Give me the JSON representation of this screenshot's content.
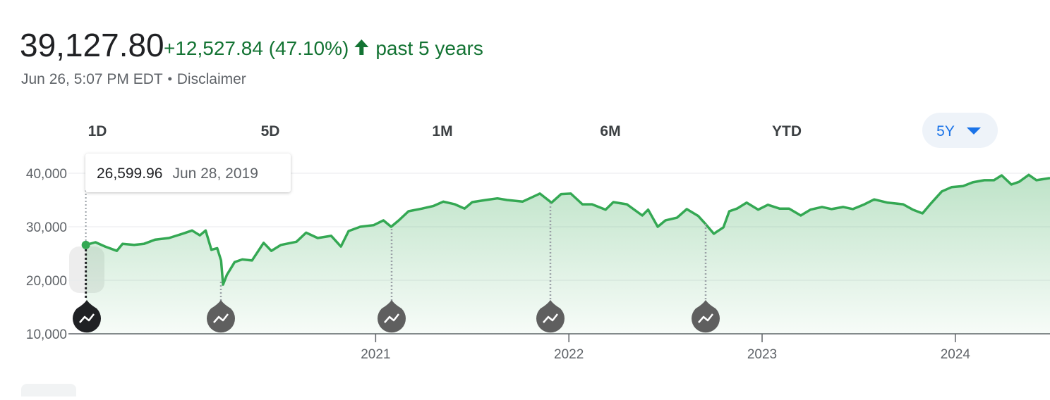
{
  "header": {
    "price": "39,127.80",
    "change": "+12,527.84 (47.10%)",
    "period": "past 5 years",
    "timestamp": "Jun 26, 5:07 PM EDT",
    "disclaimer": "Disclaimer"
  },
  "range_tabs": [
    "1D",
    "5D",
    "1M",
    "6M",
    "YTD",
    "5Y"
  ],
  "tooltip": {
    "value": "26,599.96",
    "date": "Jun 28, 2019"
  },
  "chart_data": {
    "type": "line",
    "color": "#34a853",
    "grid": true,
    "x": [
      2019.5,
      2019.55,
      2019.6,
      2019.66,
      2019.69,
      2019.75,
      2019.8,
      2019.86,
      2019.93,
      2020.0,
      2020.05,
      2020.09,
      2020.12,
      2020.15,
      2020.18,
      2020.2,
      2020.21,
      2020.23,
      2020.27,
      2020.31,
      2020.36,
      2020.42,
      2020.46,
      2020.51,
      2020.59,
      2020.64,
      2020.7,
      2020.77,
      2020.82,
      2020.86,
      2020.92,
      2020.99,
      2021.04,
      2021.08,
      2021.12,
      2021.17,
      2021.24,
      2021.3,
      2021.35,
      2021.41,
      2021.46,
      2021.5,
      2021.57,
      2021.63,
      2021.68,
      2021.76,
      2021.85,
      2021.91,
      2021.96,
      2022.01,
      2022.07,
      2022.12,
      2022.19,
      2022.23,
      2022.3,
      2022.38,
      2022.41,
      2022.46,
      2022.5,
      2022.56,
      2022.61,
      2022.67,
      2022.7,
      2022.75,
      2022.8,
      2022.83,
      2022.87,
      2022.92,
      2022.98,
      2023.03,
      2023.09,
      2023.14,
      2023.2,
      2023.25,
      2023.31,
      2023.36,
      2023.42,
      2023.47,
      2023.53,
      2023.58,
      2023.65,
      2023.73,
      2023.78,
      2023.83,
      2023.87,
      2023.93,
      2023.98,
      2024.04,
      2024.09,
      2024.15,
      2024.2,
      2024.24,
      2024.29,
      2024.33,
      2024.38,
      2024.42,
      2024.49
    ],
    "values": [
      26599.96,
      27100,
      26300,
      25500,
      26800,
      26600,
      26800,
      27600,
      27900,
      28700,
      29300,
      28400,
      29300,
      25700,
      26000,
      23700,
      19200,
      21000,
      23400,
      23900,
      23700,
      27000,
      25500,
      26600,
      27200,
      28900,
      27900,
      28300,
      26300,
      29200,
      30000,
      30300,
      31200,
      30000,
      31200,
      32900,
      33400,
      33900,
      34700,
      34200,
      33400,
      34600,
      35000,
      35300,
      35000,
      34700,
      36200,
      34500,
      36100,
      36200,
      34200,
      34200,
      33200,
      34600,
      34200,
      32100,
      33200,
      30000,
      31200,
      31700,
      33300,
      32000,
      30800,
      28700,
      29900,
      32900,
      33400,
      34500,
      33200,
      34100,
      33400,
      33400,
      32100,
      33200,
      33700,
      33300,
      33700,
      33300,
      34200,
      35100,
      34500,
      34200,
      33200,
      32500,
      34200,
      36600,
      37400,
      37600,
      38300,
      38700,
      38700,
      39600,
      37900,
      38400,
      39700,
      38700,
      39100
    ],
    "xlim": [
      2019.41,
      2024.49
    ],
    "ylim": [
      10000,
      42000
    ],
    "xticks": [
      2021,
      2022,
      2023,
      2024
    ],
    "yticks": [
      {
        "value": 10000,
        "label": "10,000"
      },
      {
        "value": 20000,
        "label": "20,000"
      },
      {
        "value": 30000,
        "label": "30,000"
      },
      {
        "value": 40000,
        "label": "40,000"
      }
    ]
  }
}
